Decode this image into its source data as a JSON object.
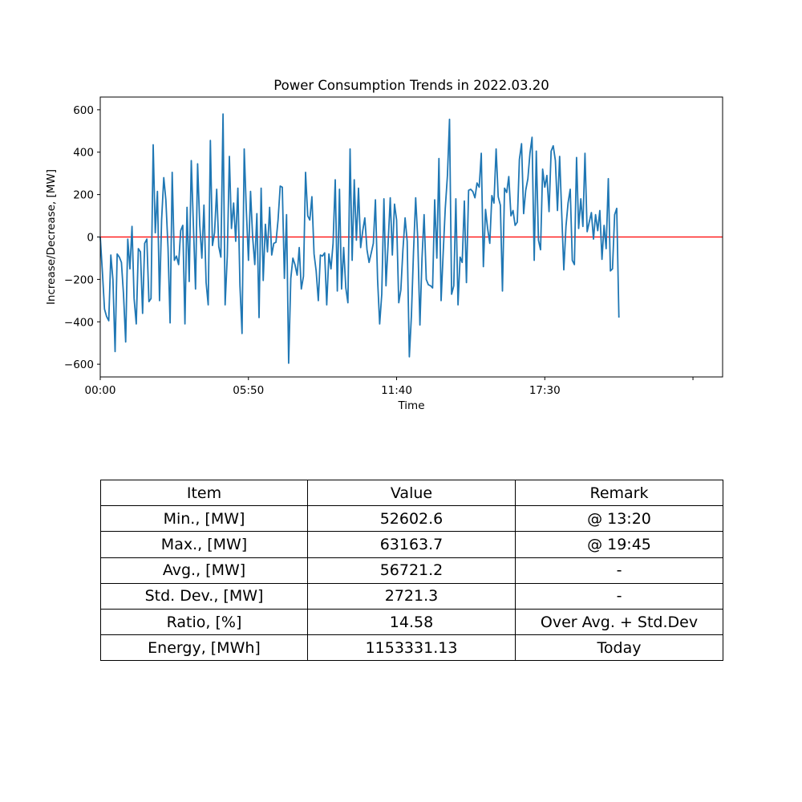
{
  "chart_data": {
    "type": "line",
    "title": "Power Consumption Trends in 2022.03.20",
    "xlabel": "Time",
    "ylabel": "Increase/Decrease, [MW]",
    "x_unit": "minutes after 00:00",
    "xlim": [
      "00:00",
      "24:00"
    ],
    "ylim": [
      -660,
      660
    ],
    "xticks": [
      {
        "value": 0,
        "label": "00:00"
      },
      {
        "value": 350,
        "label": "05:50"
      },
      {
        "value": 700,
        "label": "11:40"
      },
      {
        "value": 1050,
        "label": "17:30"
      },
      {
        "value": 1400,
        "label": ""
      }
    ],
    "yticks": [
      600,
      400,
      200,
      0,
      -200,
      -400,
      -600
    ],
    "reference_line": {
      "y": 0,
      "color": "#ff0000"
    },
    "series": [
      {
        "color": "#1f77b4",
        "interval_minutes": 5,
        "start": "00:00",
        "values": [
          0,
          -160,
          -340,
          -375,
          -395,
          -85,
          -200,
          -540,
          -80,
          -95,
          -120,
          -270,
          -495,
          -10,
          -150,
          50,
          -290,
          -410,
          -55,
          -70,
          -360,
          -30,
          -10,
          -305,
          -290,
          435,
          20,
          215,
          -300,
          80,
          280,
          175,
          -50,
          -405,
          305,
          -110,
          -90,
          -130,
          30,
          55,
          -410,
          140,
          -210,
          360,
          60,
          -245,
          345,
          55,
          -100,
          150,
          -215,
          -320,
          455,
          -40,
          20,
          225,
          -45,
          -95,
          580,
          -320,
          -90,
          380,
          40,
          160,
          -20,
          230,
          -230,
          -455,
          415,
          130,
          -110,
          215,
          0,
          -130,
          110,
          -380,
          230,
          -205,
          60,
          -70,
          140,
          -85,
          -30,
          -25,
          80,
          240,
          235,
          -195,
          105,
          -595,
          -195,
          -100,
          -130,
          -180,
          -50,
          -245,
          -185,
          305,
          100,
          80,
          190,
          -80,
          -160,
          -300,
          -85,
          -90,
          -75,
          -320,
          -80,
          -150,
          -30,
          270,
          -255,
          225,
          -245,
          -50,
          -240,
          -310,
          415,
          -110,
          270,
          -15,
          230,
          -50,
          30,
          90,
          -60,
          -120,
          -75,
          -30,
          175,
          -200,
          -410,
          -270,
          180,
          -230,
          -25,
          185,
          -85,
          155,
          80,
          -310,
          -250,
          -60,
          90,
          -20,
          -565,
          -370,
          -70,
          185,
          -10,
          -415,
          -100,
          105,
          -200,
          -225,
          -230,
          -240,
          175,
          -100,
          370,
          -300,
          -75,
          135,
          290,
          555,
          -270,
          -230,
          180,
          -320,
          -95,
          -120,
          170,
          -215,
          220,
          225,
          215,
          185,
          255,
          235,
          395,
          -140,
          130,
          40,
          -30,
          195,
          160,
          415,
          190,
          150,
          -255,
          230,
          210,
          285,
          100,
          125,
          55,
          70,
          365,
          440,
          110,
          220,
          275,
          395,
          470,
          -110,
          405,
          -15,
          -60,
          320,
          235,
          290,
          120,
          405,
          430,
          360,
          125,
          380,
          110,
          -155,
          50,
          160,
          225,
          -110,
          -130,
          375,
          40,
          180,
          50,
          395,
          25,
          70,
          115,
          -10,
          105,
          30,
          125,
          -105,
          55,
          -55,
          275,
          -160,
          -150,
          105,
          135,
          -380
        ]
      }
    ]
  },
  "table": {
    "headers": [
      "Item",
      "Value",
      "Remark"
    ],
    "rows": [
      {
        "item": "Min., [MW]",
        "value": "52602.6",
        "remark": "@ 13:20"
      },
      {
        "item": "Max., [MW]",
        "value": "63163.7",
        "remark": "@ 19:45"
      },
      {
        "item": "Avg., [MW]",
        "value": "56721.2",
        "remark": "-"
      },
      {
        "item": "Std. Dev., [MW]",
        "value": "2721.3",
        "remark": "-"
      },
      {
        "item": "Ratio, [%]",
        "value": "14.58",
        "remark": "Over Avg. + Std.Dev"
      },
      {
        "item": "Energy, [MWh]",
        "value": "1153331.13",
        "remark": "Today"
      }
    ]
  }
}
